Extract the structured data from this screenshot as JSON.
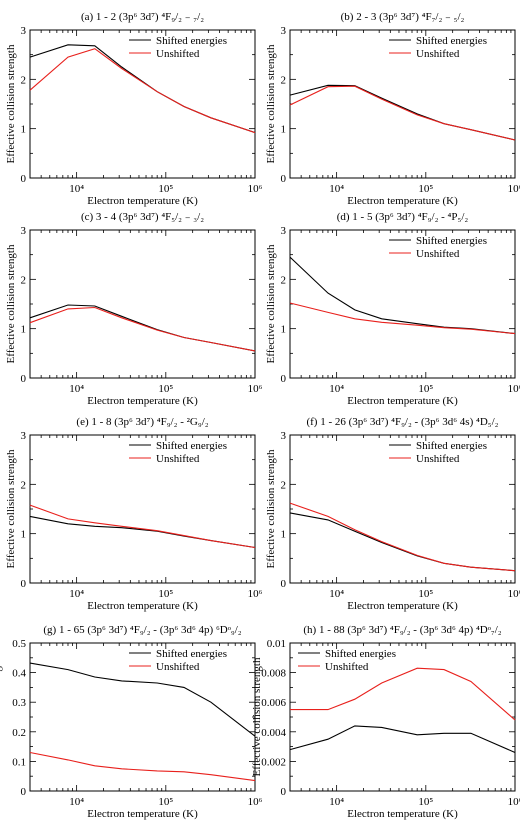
{
  "colors": {
    "shifted": "#000000",
    "unshifted": "#e8201c",
    "axis": "#000000"
  },
  "chart_data": [
    {
      "type": "line",
      "title": "(a) 1 - 2  (3p⁶ 3d⁷) ⁴F₉/₂ ₋ ₇/₂",
      "xlabel": "Electron temperature (K)",
      "ylabel": "Effective collision strength",
      "xscale": "log",
      "xlim": [
        3000,
        1000000
      ],
      "ylim": [
        0,
        3
      ],
      "xticks": [
        "10⁴",
        "10⁵",
        "10⁶"
      ],
      "yticks": [
        "0",
        "1",
        "2",
        "3"
      ],
      "legend": "top-right",
      "series": [
        {
          "name": "Shifted energies",
          "x": [
            3000,
            8000,
            16000,
            32000,
            80000,
            160000,
            320000,
            1000000
          ],
          "y": [
            2.45,
            2.7,
            2.68,
            2.25,
            1.75,
            1.45,
            1.22,
            0.92
          ]
        },
        {
          "name": "Unshifted",
          "x": [
            3000,
            8000,
            16000,
            32000,
            80000,
            160000,
            320000,
            1000000
          ],
          "y": [
            1.78,
            2.45,
            2.62,
            2.22,
            1.75,
            1.45,
            1.22,
            0.92
          ]
        }
      ]
    },
    {
      "type": "line",
      "title": "(b) 2 - 3  (3p⁶ 3d⁷) ⁴F₇/₂ ₋ ₅/₂",
      "xlabel": "Electron temperature (K)",
      "ylabel": "Effective collision strength",
      "xscale": "log",
      "xlim": [
        3000,
        1000000
      ],
      "ylim": [
        0,
        3
      ],
      "xticks": [
        "10⁴",
        "10⁵",
        "10⁶"
      ],
      "yticks": [
        "0",
        "1",
        "2",
        "3"
      ],
      "legend": "top-right",
      "series": [
        {
          "name": "Shifted energies",
          "x": [
            3000,
            8000,
            16000,
            32000,
            80000,
            160000,
            320000,
            1000000
          ],
          "y": [
            1.68,
            1.88,
            1.87,
            1.62,
            1.3,
            1.1,
            0.98,
            0.77
          ]
        },
        {
          "name": "Unshifted",
          "x": [
            3000,
            8000,
            16000,
            32000,
            80000,
            160000,
            320000,
            1000000
          ],
          "y": [
            1.48,
            1.85,
            1.86,
            1.6,
            1.28,
            1.1,
            0.98,
            0.77
          ]
        }
      ]
    },
    {
      "type": "line",
      "title": "(c) 3 - 4  (3p⁶ 3d⁷) ⁴F₅/₂ ₋ ₃/₂",
      "xlabel": "Electron temperature (K)",
      "ylabel": "Effective collision strength",
      "xscale": "log",
      "xlim": [
        3000,
        1000000
      ],
      "ylim": [
        0,
        3
      ],
      "xticks": [
        "10⁴",
        "10⁵",
        "10⁶"
      ],
      "yticks": [
        "0",
        "1",
        "2",
        "3"
      ],
      "legend": "none",
      "series": [
        {
          "name": "",
          "x": [
            3000,
            8000,
            16000,
            32000,
            80000,
            160000,
            320000,
            1000000
          ],
          "y": [
            1.22,
            1.48,
            1.46,
            1.25,
            0.98,
            0.82,
            0.72,
            0.55
          ]
        },
        {
          "name": "",
          "x": [
            3000,
            8000,
            16000,
            32000,
            80000,
            160000,
            320000,
            1000000
          ],
          "y": [
            1.12,
            1.4,
            1.43,
            1.22,
            0.97,
            0.82,
            0.72,
            0.55
          ]
        }
      ]
    },
    {
      "type": "line",
      "title": "(d) 1 - 5  (3p⁶ 3d⁷) ⁴F₉/₂ - ⁴P₅/₂",
      "xlabel": "Electron temperature (K)",
      "ylabel": "Effective collision strength",
      "xscale": "log",
      "xlim": [
        3000,
        1000000
      ],
      "ylim": [
        0,
        3
      ],
      "xticks": [
        "10⁴",
        "10⁵",
        "10⁶"
      ],
      "yticks": [
        "0",
        "1",
        "2",
        "3"
      ],
      "legend": "top-right",
      "series": [
        {
          "name": "Shifted energies",
          "x": [
            3000,
            8000,
            16000,
            32000,
            80000,
            160000,
            320000,
            1000000
          ],
          "y": [
            2.45,
            1.72,
            1.38,
            1.2,
            1.1,
            1.03,
            1.0,
            0.9
          ]
        },
        {
          "name": "Unshifted",
          "x": [
            3000,
            8000,
            16000,
            32000,
            80000,
            160000,
            320000,
            1000000
          ],
          "y": [
            1.52,
            1.33,
            1.2,
            1.13,
            1.07,
            1.02,
            0.99,
            0.9
          ]
        }
      ]
    },
    {
      "type": "line",
      "title": "(e) 1 - 8  (3p⁶ 3d⁷) ⁴F₉/₂ - ²G₉/₂",
      "xlabel": "Electron temperature (K)",
      "ylabel": "Effective collision strength",
      "xscale": "log",
      "xlim": [
        3000,
        1000000
      ],
      "ylim": [
        0,
        3
      ],
      "xticks": [
        "10⁴",
        "10⁵",
        "10⁶"
      ],
      "yticks": [
        "0",
        "1",
        "2",
        "3"
      ],
      "legend": "top-right",
      "series": [
        {
          "name": "Shifted energies",
          "x": [
            3000,
            8000,
            16000,
            32000,
            80000,
            160000,
            320000,
            1000000
          ],
          "y": [
            1.35,
            1.2,
            1.15,
            1.12,
            1.05,
            0.95,
            0.86,
            0.72
          ]
        },
        {
          "name": "Unshifted",
          "x": [
            3000,
            8000,
            16000,
            32000,
            80000,
            160000,
            320000,
            1000000
          ],
          "y": [
            1.58,
            1.3,
            1.22,
            1.15,
            1.06,
            0.96,
            0.86,
            0.72
          ]
        }
      ]
    },
    {
      "type": "line",
      "title": "(f) 1 - 26  (3p⁶ 3d⁷) ⁴F₉/₂ - (3p⁶ 3d⁶ 4s) ⁴D₅/₂",
      "xlabel": "Electron temperature (K)",
      "ylabel": "Effective collision strength",
      "xscale": "log",
      "xlim": [
        3000,
        1000000
      ],
      "ylim": [
        0,
        3
      ],
      "xticks": [
        "10⁴",
        "10⁵",
        "10⁶"
      ],
      "yticks": [
        "0",
        "1",
        "2",
        "3"
      ],
      "legend": "top-right",
      "series": [
        {
          "name": "Shifted energies",
          "x": [
            3000,
            8000,
            16000,
            32000,
            80000,
            160000,
            320000,
            1000000
          ],
          "y": [
            1.42,
            1.28,
            1.05,
            0.82,
            0.55,
            0.4,
            0.32,
            0.25
          ]
        },
        {
          "name": "Unshifted",
          "x": [
            3000,
            8000,
            16000,
            32000,
            80000,
            160000,
            320000,
            1000000
          ],
          "y": [
            1.62,
            1.35,
            1.08,
            0.84,
            0.56,
            0.4,
            0.32,
            0.25
          ]
        }
      ]
    },
    {
      "type": "line",
      "title": "(g) 1 - 65  (3p⁶ 3d⁷) ⁴F₉/₂ - (3p⁶ 3d⁶ 4p) ⁶Dᵒ₉/₂",
      "xlabel": "Electron temperature (K)",
      "ylabel": "Effective collision strength",
      "xscale": "log",
      "xlim": [
        3000,
        1000000
      ],
      "ylim": [
        0,
        0.5
      ],
      "xticks": [
        "10⁴",
        "10⁵",
        "10⁶"
      ],
      "yticks": [
        "0",
        "0.1",
        "0.2",
        "0.3",
        "0.4",
        "0.5"
      ],
      "legend": "top-right",
      "series": [
        {
          "name": "Shifted energies",
          "x": [
            3000,
            8000,
            16000,
            32000,
            80000,
            160000,
            320000,
            1000000
          ],
          "y": [
            0.432,
            0.41,
            0.385,
            0.372,
            0.365,
            0.35,
            0.3,
            0.185
          ]
        },
        {
          "name": "Unshifted",
          "x": [
            3000,
            8000,
            16000,
            32000,
            80000,
            160000,
            320000,
            1000000
          ],
          "y": [
            0.13,
            0.105,
            0.085,
            0.075,
            0.068,
            0.065,
            0.055,
            0.035
          ]
        }
      ]
    },
    {
      "type": "line",
      "title": "(h) 1 - 88  (3p⁶ 3d⁷) ⁴F₉/₂ - (3p⁶ 3d⁶ 4p) ⁴Dᵒ₇/₂",
      "xlabel": "Electron temperature (K)",
      "ylabel": "Effective collision strength",
      "xscale": "log",
      "xlim": [
        3000,
        1000000
      ],
      "ylim": [
        0,
        0.01
      ],
      "xticks": [
        "10⁴",
        "10⁵",
        "10⁶"
      ],
      "yticks": [
        "0",
        "0.002",
        "0.004",
        "0.006",
        "0.008",
        "0.01"
      ],
      "legend": "top-left",
      "series": [
        {
          "name": "Shifted energies",
          "x": [
            3000,
            8000,
            16000,
            32000,
            80000,
            160000,
            320000,
            1000000
          ],
          "y": [
            0.0028,
            0.0035,
            0.0044,
            0.0043,
            0.0038,
            0.0039,
            0.0039,
            0.0026
          ]
        },
        {
          "name": "Unshifted",
          "x": [
            3000,
            8000,
            16000,
            32000,
            80000,
            160000,
            320000,
            1000000
          ],
          "y": [
            0.0055,
            0.0055,
            0.0062,
            0.0073,
            0.0083,
            0.0082,
            0.0074,
            0.0048
          ]
        }
      ]
    }
  ]
}
